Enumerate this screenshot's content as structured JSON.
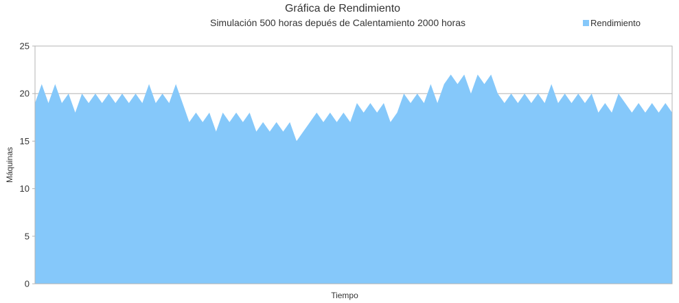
{
  "chart_data": {
    "type": "area",
    "title": "Gráfica de Rendimiento",
    "subtitle": "Simulación 500 horas depués de Calentamiento 2000 horas",
    "xlabel": "Tiempo",
    "ylabel": "Máquinas",
    "ylim": [
      0,
      25
    ],
    "yticks": [
      0,
      5,
      10,
      15,
      20,
      25
    ],
    "grid": true,
    "legend_position": "top-right",
    "colors": {
      "area": "#85c8fa",
      "grid": "#b3b3b3",
      "axis": "#b3b3b3"
    },
    "series": [
      {
        "name": "Rendimiento",
        "values": [
          19,
          21,
          19,
          21,
          19,
          20,
          18,
          20,
          19,
          20,
          19,
          20,
          19,
          20,
          19,
          20,
          19,
          21,
          19,
          20,
          19,
          21,
          19,
          17,
          18,
          17,
          18,
          16,
          18,
          17,
          18,
          17,
          18,
          16,
          17,
          16,
          17,
          16,
          17,
          15,
          16,
          17,
          18,
          17,
          18,
          17,
          18,
          17,
          19,
          18,
          19,
          18,
          19,
          17,
          18,
          20,
          19,
          20,
          19,
          21,
          19,
          21,
          22,
          21,
          22,
          20,
          22,
          21,
          22,
          20,
          19,
          20,
          19,
          20,
          19,
          20,
          19,
          21,
          19,
          20,
          19,
          20,
          19,
          20,
          18,
          19,
          18,
          20,
          19,
          18,
          19,
          18,
          19,
          18,
          19,
          18
        ]
      }
    ]
  }
}
